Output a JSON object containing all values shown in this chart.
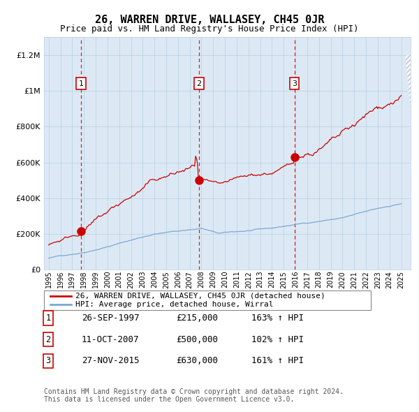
{
  "title": "26, WARREN DRIVE, WALLASEY, CH45 0JR",
  "subtitle": "Price paid vs. HM Land Registry's House Price Index (HPI)",
  "ylabel_ticks": [
    "£0",
    "£200K",
    "£400K",
    "£600K",
    "£800K",
    "£1M",
    "£1.2M"
  ],
  "ytick_values": [
    0,
    200000,
    400000,
    600000,
    800000,
    1000000,
    1200000
  ],
  "ylim": [
    0,
    1300000
  ],
  "xlim_start": 1994.6,
  "xlim_end": 2025.8,
  "sales": [
    {
      "num": 1,
      "date": "26-SEP-1997",
      "price": 215000,
      "year": 1997.75,
      "hpi_pct": "163% ↑ HPI"
    },
    {
      "num": 2,
      "date": "11-OCT-2007",
      "price": 500000,
      "year": 2007.79,
      "hpi_pct": "102% ↑ HPI"
    },
    {
      "num": 3,
      "date": "27-NOV-2015",
      "price": 630000,
      "year": 2015.91,
      "hpi_pct": "161% ↑ HPI"
    }
  ],
  "legend_property": "26, WARREN DRIVE, WALLASEY, CH45 0JR (detached house)",
  "legend_hpi": "HPI: Average price, detached house, Wirral",
  "footer1": "Contains HM Land Registry data © Crown copyright and database right 2024.",
  "footer2": "This data is licensed under the Open Government Licence v3.0.",
  "red_color": "#cc0000",
  "blue_color": "#7aa8d4",
  "bg_color": "#dce9f5",
  "grid_color": "#b8cfe0",
  "title_fontsize": 11,
  "subtitle_fontsize": 9,
  "axis_fontsize": 8,
  "table_fontsize": 9,
  "footer_fontsize": 7
}
